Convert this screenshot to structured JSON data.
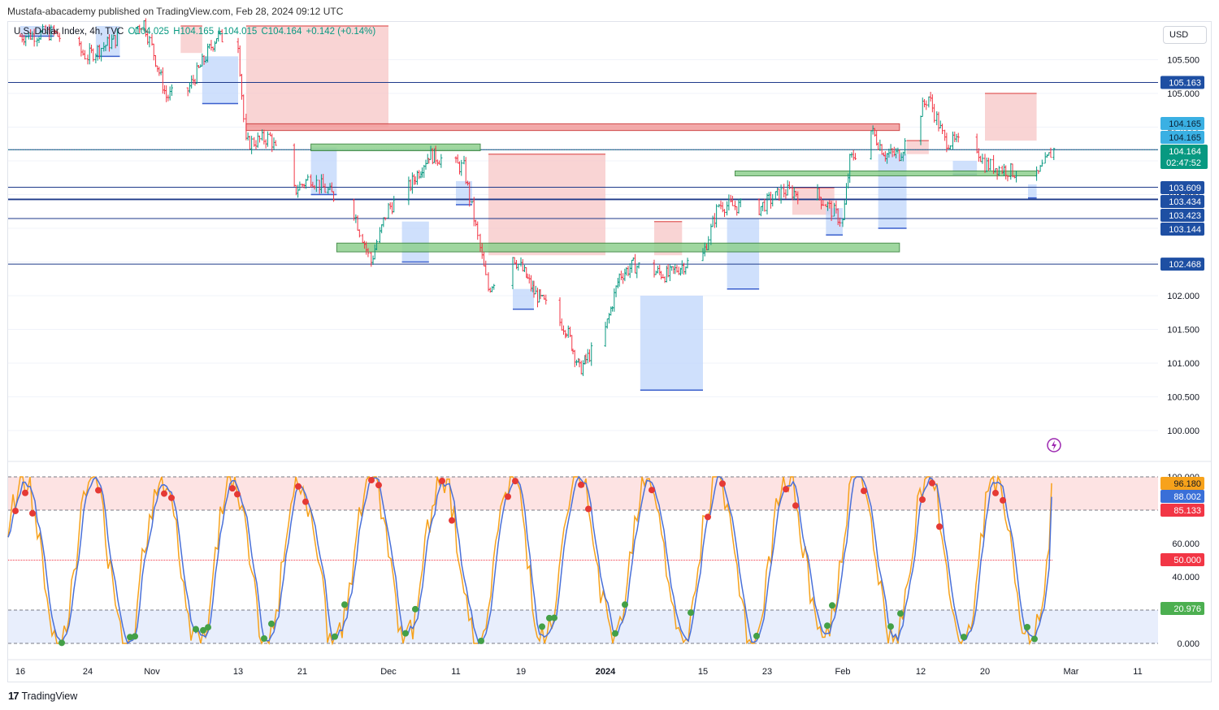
{
  "header": {
    "published": "Mustafa-abacademy published on TradingView.com, Feb 28, 2024 09:12 UTC"
  },
  "legend": {
    "symbol": "U.S. Dollar Index, 4h, TVC",
    "open": "O104.025",
    "high": "H104.165",
    "low": "L104.015",
    "close": "C104.164",
    "change": "+0.142 (+0.14%)"
  },
  "currency_button": "USD",
  "branding": "TradingView",
  "colors": {
    "up": "#089981",
    "down": "#f23645",
    "supply_zone": "#f7c5c5",
    "demand_zone": "#bfd6fb",
    "green_zone": "#8fd18f",
    "red_zone": "#f29c9c",
    "level_line": "#1e3a8a",
    "stoch_k": "#f7a21b",
    "stoch_d": "#4a70d8"
  },
  "chart_data": [
    {
      "type": "candlestick",
      "name": "price_panel",
      "ylim": [
        99.6,
        106.0
      ],
      "y_ticks": [
        "105.500",
        "105.000",
        "104.500",
        "104.000",
        "103.500",
        "103.000",
        "102.500",
        "102.000",
        "101.500",
        "101.000",
        "100.500",
        "100.000"
      ],
      "y_tick_values": [
        105.5,
        105.0,
        104.5,
        104.0,
        103.5,
        103.0,
        102.5,
        102.0,
        101.5,
        101.0,
        100.5,
        100.0
      ],
      "x_ticks": [
        "16",
        "24",
        "Nov",
        "13",
        "21",
        "Dec",
        "11",
        "19",
        "2024",
        "15",
        "23",
        "Feb",
        "12",
        "20",
        "Mar",
        "11"
      ],
      "x_tick_dates": [
        "2023-10-16",
        "2023-10-24",
        "2023-11-01",
        "2023-11-13",
        "2023-11-21",
        "2023-12-01",
        "2023-12-11",
        "2023-12-19",
        "2024-01-01",
        "2024-01-15",
        "2024-01-23",
        "2024-02-01",
        "2024-02-12",
        "2024-02-20",
        "2024-03-01",
        "2024-03-11"
      ],
      "close_path": [
        {
          "date": "2023-10-16",
          "value": 105.85
        },
        {
          "date": "2023-10-20",
          "value": 105.9
        },
        {
          "date": "2023-10-24",
          "value": 105.55
        },
        {
          "date": "2023-10-26",
          "value": 105.7
        },
        {
          "date": "2023-10-31",
          "value": 106.05
        },
        {
          "date": "2023-11-03",
          "value": 104.95
        },
        {
          "date": "2023-11-06",
          "value": 105.05
        },
        {
          "date": "2023-11-10",
          "value": 105.85
        },
        {
          "date": "2023-11-13",
          "value": 105.75
        },
        {
          "date": "2023-11-14",
          "value": 104.25
        },
        {
          "date": "2023-11-17",
          "value": 104.35
        },
        {
          "date": "2023-11-20",
          "value": 103.55
        },
        {
          "date": "2023-11-22",
          "value": 103.75
        },
        {
          "date": "2023-11-27",
          "value": 103.25
        },
        {
          "date": "2023-11-29",
          "value": 102.5
        },
        {
          "date": "2023-12-01",
          "value": 103.3
        },
        {
          "date": "2023-12-04",
          "value": 103.6
        },
        {
          "date": "2023-12-07",
          "value": 104.1
        },
        {
          "date": "2023-12-12",
          "value": 103.9
        },
        {
          "date": "2023-12-14",
          "value": 102.7
        },
        {
          "date": "2023-12-15",
          "value": 102.1
        },
        {
          "date": "2023-12-18",
          "value": 102.6
        },
        {
          "date": "2023-12-21",
          "value": 102.05
        },
        {
          "date": "2023-12-26",
          "value": 101.5
        },
        {
          "date": "2023-12-28",
          "value": 100.9
        },
        {
          "date": "2024-01-01",
          "value": 101.5
        },
        {
          "date": "2024-01-03",
          "value": 102.3
        },
        {
          "date": "2024-01-05",
          "value": 102.45
        },
        {
          "date": "2024-01-10",
          "value": 102.3
        },
        {
          "date": "2024-01-12",
          "value": 102.45
        },
        {
          "date": "2024-01-15",
          "value": 102.6
        },
        {
          "date": "2024-01-17",
          "value": 103.35
        },
        {
          "date": "2024-01-22",
          "value": 103.3
        },
        {
          "date": "2024-01-25",
          "value": 103.55
        },
        {
          "date": "2024-01-29",
          "value": 103.5
        },
        {
          "date": "2024-02-01",
          "value": 103.1
        },
        {
          "date": "2024-02-02",
          "value": 104.0
        },
        {
          "date": "2024-02-05",
          "value": 104.45
        },
        {
          "date": "2024-02-07",
          "value": 104.1
        },
        {
          "date": "2024-02-09",
          "value": 104.1
        },
        {
          "date": "2024-02-13",
          "value": 104.95
        },
        {
          "date": "2024-02-15",
          "value": 104.3
        },
        {
          "date": "2024-02-19",
          "value": 104.2
        },
        {
          "date": "2024-02-20",
          "value": 103.95
        },
        {
          "date": "2024-02-23",
          "value": 103.85
        },
        {
          "date": "2024-02-26",
          "value": 103.75
        },
        {
          "date": "2024-02-28",
          "value": 104.164
        }
      ],
      "horizontal_levels": [
        105.163,
        104.165,
        103.609,
        103.434,
        103.423,
        103.144,
        102.468
      ],
      "current_price": {
        "value": "104.164",
        "countdown": "02:47:52"
      },
      "price_tags": [
        {
          "value": "105.163",
          "kind": "level"
        },
        {
          "value": "104.165",
          "kind": "high"
        },
        {
          "value": "104.165",
          "kind": "high"
        },
        {
          "value": "103.609",
          "kind": "level"
        },
        {
          "value": "103.434",
          "kind": "level"
        },
        {
          "value": "103.423",
          "kind": "level"
        },
        {
          "value": "103.144",
          "kind": "level"
        }
      ],
      "price_tag_last": {
        "value": "102.468",
        "kind": "level"
      },
      "zones": [
        {
          "kind": "red",
          "from": "2023-11-14",
          "to": "2024-02-09",
          "top": 104.55,
          "bottom": 104.45
        },
        {
          "kind": "green",
          "from": "2023-11-22",
          "to": "2023-12-14",
          "top": 104.25,
          "bottom": 104.15
        },
        {
          "kind": "green",
          "from": "2023-11-25",
          "to": "2024-02-09",
          "top": 102.78,
          "bottom": 102.65
        },
        {
          "kind": "green",
          "from": "2024-01-19",
          "to": "2024-02-26",
          "top": 103.85,
          "bottom": 103.79
        }
      ]
    },
    {
      "type": "line",
      "name": "stochastic_oscillator",
      "ylim": [
        0,
        100
      ],
      "y_ticks": [
        "100.000",
        "60.000",
        "40.000",
        "0.000"
      ],
      "y_tick_values": [
        100,
        60,
        40,
        0
      ],
      "bands": {
        "upper": 80,
        "middle": 50,
        "lower": 20
      },
      "series": [
        {
          "name": "%K",
          "last": "96.180"
        },
        {
          "name": "%D",
          "last": "88.002"
        }
      ],
      "value_tags": [
        {
          "value": "96.180"
        },
        {
          "value": "88.002"
        },
        {
          "value": "85.133"
        },
        {
          "value": "50.000"
        },
        {
          "value": "20.976"
        }
      ]
    }
  ]
}
